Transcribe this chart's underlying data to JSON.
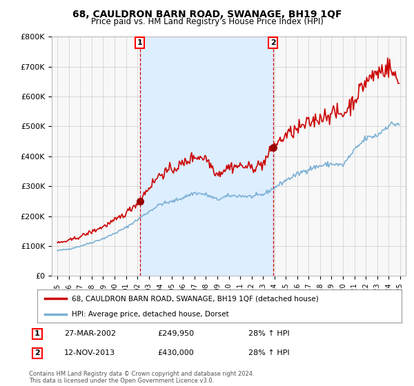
{
  "title": "68, CAULDRON BARN ROAD, SWANAGE, BH19 1QF",
  "subtitle": "Price paid vs. HM Land Registry's House Price Index (HPI)",
  "title_fontsize": 10,
  "subtitle_fontsize": 8.5,
  "xlim": [
    1994.5,
    2025.5
  ],
  "ylim": [
    0,
    800000
  ],
  "yticks": [
    0,
    100000,
    200000,
    300000,
    400000,
    500000,
    600000,
    700000,
    800000
  ],
  "ytick_labels": [
    "£0",
    "£100K",
    "£200K",
    "£300K",
    "£400K",
    "£500K",
    "£600K",
    "£700K",
    "£800K"
  ],
  "xtick_years": [
    1995,
    1996,
    1997,
    1998,
    1999,
    2000,
    2001,
    2002,
    2003,
    2004,
    2005,
    2006,
    2007,
    2008,
    2009,
    2010,
    2011,
    2012,
    2013,
    2014,
    2015,
    2016,
    2017,
    2018,
    2019,
    2020,
    2021,
    2022,
    2023,
    2024,
    2025
  ],
  "marker1_x": 2002.22,
  "marker1_y": 249950,
  "marker2_x": 2013.88,
  "marker2_y": 430000,
  "vline1_x": 2002.22,
  "vline2_x": 2013.88,
  "red_line_color": "#cc0000",
  "blue_line_color": "#7ab0d4",
  "red_dot_color": "#990000",
  "vline_color": "#cc0000",
  "grid_color": "#cccccc",
  "background_color": "#ffffff",
  "plot_bg_color": "#f8f8f8",
  "shaded_region_color": "#ddeeff",
  "legend_entries": [
    "68, CAULDRON BARN ROAD, SWANAGE, BH19 1QF (detached house)",
    "HPI: Average price, detached house, Dorset"
  ],
  "table_rows": [
    {
      "num": "1",
      "date": "27-MAR-2002",
      "price": "£249,950",
      "hpi": "28% ↑ HPI"
    },
    {
      "num": "2",
      "date": "12-NOV-2013",
      "price": "£430,000",
      "hpi": "28% ↑ HPI"
    }
  ],
  "footer": "Contains HM Land Registry data © Crown copyright and database right 2024.\nThis data is licensed under the Open Government Licence v3.0."
}
